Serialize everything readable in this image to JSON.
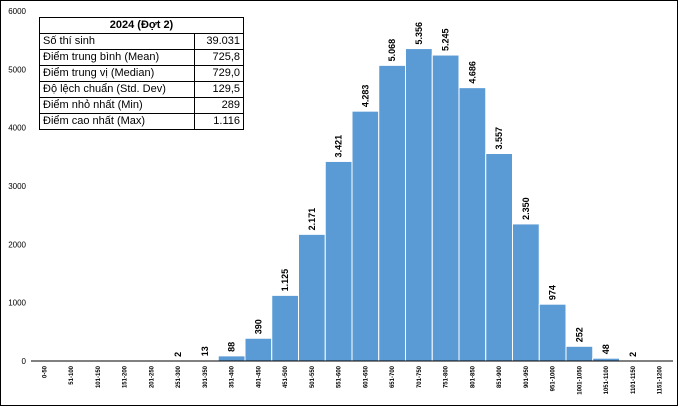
{
  "chart_data": {
    "type": "bar",
    "categories": [
      "0-50",
      "51-100",
      "101-150",
      "151-200",
      "201-250",
      "251-300",
      "301-350",
      "351-400",
      "401-450",
      "451-500",
      "501-550",
      "551-600",
      "601-650",
      "651-700",
      "701-750",
      "751-800",
      "801-850",
      "851-900",
      "901-950",
      "951-1000",
      "1001-1050",
      "1051-1100",
      "1101-1150",
      "1151-1200"
    ],
    "values": [
      0,
      0,
      0,
      0,
      0,
      2,
      13,
      88,
      390,
      1125,
      2171,
      3421,
      4283,
      5068,
      5356,
      5245,
      4686,
      3557,
      2350,
      974,
      252,
      48,
      2,
      0
    ],
    "labels": [
      "",
      "",
      "",
      "",
      "",
      "2",
      "13",
      "88",
      "390",
      "1.125",
      "2.171",
      "3.421",
      "4.283",
      "5.068",
      "5.356",
      "5.245",
      "4.686",
      "3.557",
      "2.350",
      "974",
      "252",
      "48",
      "2",
      ""
    ],
    "ylim": [
      0,
      6000
    ],
    "yticks": [
      0,
      1000,
      2000,
      3000,
      4000,
      5000,
      6000
    ],
    "bar_color": "#5b9bd5",
    "grid": false
  },
  "stats_table": {
    "title": "2024 (Đợt 2)",
    "rows": [
      {
        "label": "Số thí sinh",
        "value": "39.031"
      },
      {
        "label": "Điểm trung bình (Mean)",
        "value": "725,8"
      },
      {
        "label": "Điểm trung vị (Median)",
        "value": "729,0"
      },
      {
        "label": "Độ lệch chuẩn (Std. Dev)",
        "value": "129,5"
      },
      {
        "label": "Điểm nhỏ nhất (Min)",
        "value": "289"
      },
      {
        "label": "Điểm cao nhất (Max)",
        "value": "1.116"
      }
    ]
  }
}
